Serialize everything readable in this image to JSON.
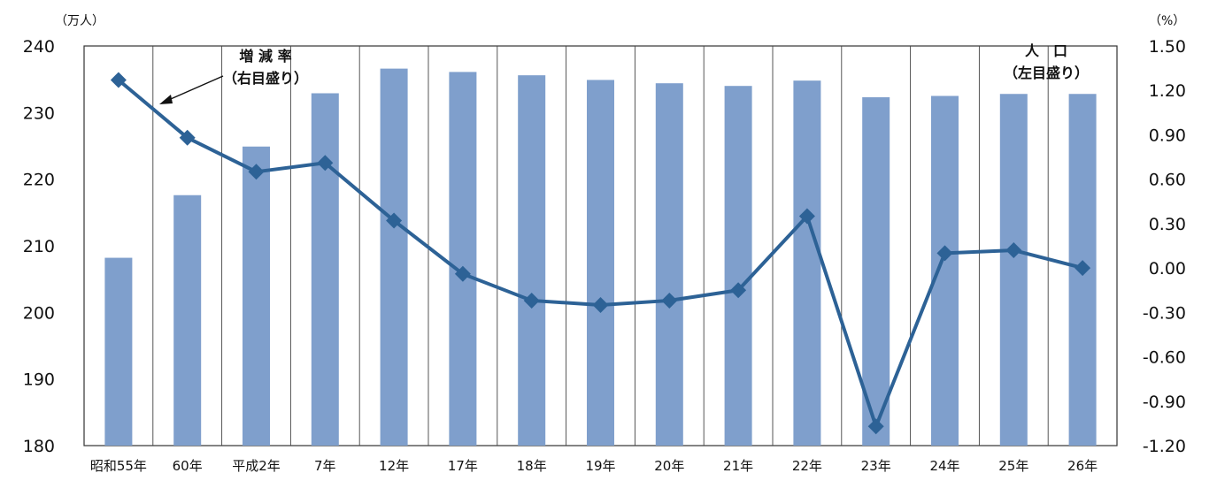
{
  "chart_data": {
    "type": "bar",
    "categories": [
      "昭和55年",
      "60年",
      "平成2年",
      "7年",
      "12年",
      "17年",
      "18年",
      "19年",
      "20年",
      "21年",
      "22年",
      "23年",
      "24年",
      "25年",
      "26年"
    ],
    "series": [
      {
        "name": "人　口",
        "type": "bar",
        "axis": "left",
        "color": "#7f9fcc",
        "values": [
          208.2,
          217.6,
          224.9,
          232.9,
          236.6,
          236.1,
          235.6,
          234.9,
          234.4,
          234.0,
          234.8,
          232.3,
          232.5,
          232.8,
          232.8
        ]
      },
      {
        "name": "増減率",
        "type": "line",
        "axis": "right",
        "color": "#2d6296",
        "marker": "diamond",
        "values": [
          1.27,
          0.88,
          0.65,
          0.71,
          0.32,
          -0.04,
          -0.22,
          -0.25,
          -0.22,
          -0.15,
          0.35,
          -1.07,
          0.1,
          0.12,
          0.0
        ]
      }
    ],
    "left_axis": {
      "unit": "（万人）",
      "ylim": [
        180,
        240
      ],
      "ticks": [
        "180",
        "190",
        "200",
        "210",
        "220",
        "230",
        "240"
      ]
    },
    "right_axis": {
      "unit": "（%）",
      "ylim": [
        -1.2,
        1.5
      ],
      "ticks": [
        "-1.20",
        "-0.90",
        "-0.60",
        "-0.30",
        "0.00",
        "0.30",
        "0.60",
        "0.90",
        "1.20",
        "1.50"
      ]
    },
    "annotations": {
      "rate_label": "増 減 率",
      "rate_sub": "（右目盛り）",
      "pop_label": "人　口",
      "pop_sub": "（左目盛り）"
    },
    "grid": "vertical"
  }
}
